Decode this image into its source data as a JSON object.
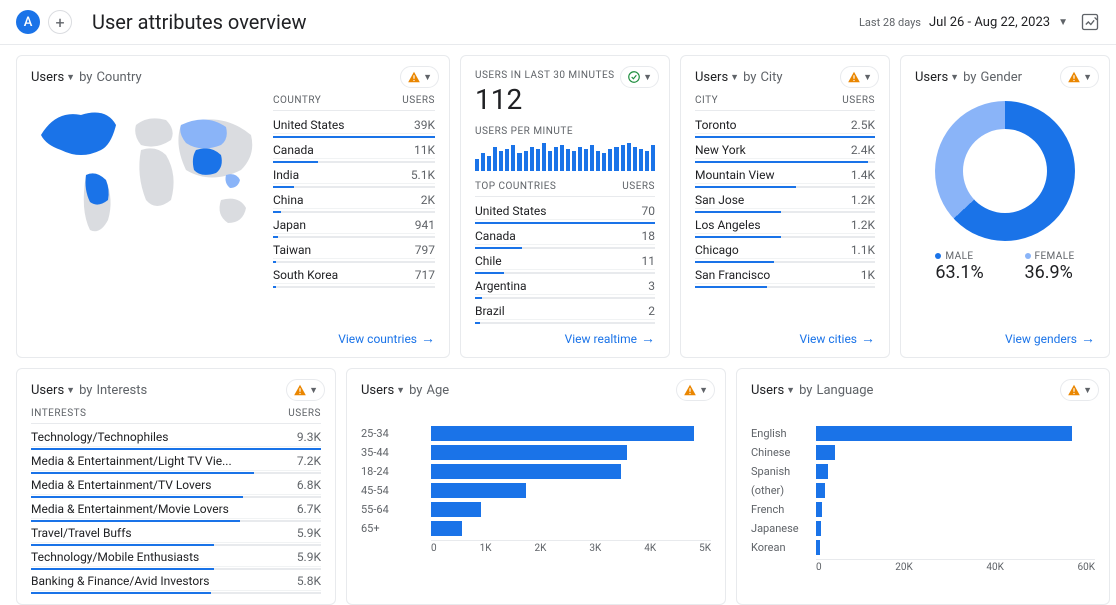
{
  "header": {
    "avatar_letter": "A",
    "title": "User attributes overview",
    "date_label": "Last 28 days",
    "date_range": "Jul 26 - Aug 22, 2023"
  },
  "colors": {
    "primary": "#1a73e8",
    "primary_light": "#8ab4f8",
    "bar": "#1a73e8",
    "donut_male": "#1a73e8",
    "donut_female": "#8ab4f8",
    "grid": "#e8eaed",
    "text_muted": "#5f6368",
    "warn": "#ea8600",
    "success": "#1e8e3e"
  },
  "country_card": {
    "metric": "Users",
    "by_label": "by",
    "dimension": "Country",
    "col_label": "COUNTRY",
    "col_value": "USERS",
    "rows": [
      {
        "label": "United States",
        "value": "39K",
        "pct": 100
      },
      {
        "label": "Canada",
        "value": "11K",
        "pct": 28
      },
      {
        "label": "India",
        "value": "5.1K",
        "pct": 13
      },
      {
        "label": "China",
        "value": "2K",
        "pct": 5
      },
      {
        "label": "Japan",
        "value": "941",
        "pct": 3
      },
      {
        "label": "Taiwan",
        "value": "797",
        "pct": 2
      },
      {
        "label": "South Korea",
        "value": "717",
        "pct": 2
      }
    ],
    "link": "View countries",
    "map": {
      "land_fill": "#dadce0",
      "highlight_fill": "#1a73e8",
      "light_highlight": "#8ab4f8"
    }
  },
  "realtime_card": {
    "label_top": "USERS IN LAST 30 MINUTES",
    "big_number": "112",
    "label_upm": "USERS PER MINUTE",
    "spark_values": [
      12,
      18,
      15,
      24,
      20,
      22,
      26,
      18,
      20,
      24,
      22,
      28,
      20,
      24,
      26,
      22,
      20,
      24,
      22,
      26,
      20,
      18,
      22,
      24,
      26,
      28,
      24,
      22,
      20,
      26
    ],
    "spark_max": 30,
    "top_countries_label": "TOP COUNTRIES",
    "users_label": "USERS",
    "rows": [
      {
        "label": "United States",
        "value": "70",
        "pct": 100
      },
      {
        "label": "Canada",
        "value": "18",
        "pct": 26
      },
      {
        "label": "Chile",
        "value": "11",
        "pct": 16
      },
      {
        "label": "Argentina",
        "value": "3",
        "pct": 4
      },
      {
        "label": "Brazil",
        "value": "2",
        "pct": 3
      }
    ],
    "link": "View realtime"
  },
  "city_card": {
    "metric": "Users",
    "by_label": "by",
    "dimension": "City",
    "col_label": "CITY",
    "col_value": "USERS",
    "rows": [
      {
        "label": "Toronto",
        "value": "2.5K",
        "pct": 100
      },
      {
        "label": "New York",
        "value": "2.4K",
        "pct": 96
      },
      {
        "label": "Mountain View",
        "value": "1.4K",
        "pct": 56
      },
      {
        "label": "San Jose",
        "value": "1.2K",
        "pct": 48
      },
      {
        "label": "Los Angeles",
        "value": "1.2K",
        "pct": 48
      },
      {
        "label": "Chicago",
        "value": "1.1K",
        "pct": 44
      },
      {
        "label": "San Francisco",
        "value": "1K",
        "pct": 40
      }
    ],
    "link": "View cities"
  },
  "gender_card": {
    "metric": "Users",
    "by_label": "by",
    "dimension": "Gender",
    "male": {
      "label": "MALE",
      "pct_text": "63.1%",
      "pct": 63.1,
      "color": "#1a73e8"
    },
    "female": {
      "label": "FEMALE",
      "pct_text": "36.9%",
      "pct": 36.9,
      "color": "#8ab4f8"
    },
    "link": "View genders"
  },
  "interests_card": {
    "metric": "Users",
    "by_label": "by",
    "dimension": "Interests",
    "col_label": "INTERESTS",
    "col_value": "USERS",
    "rows": [
      {
        "label": "Technology/Technophiles",
        "value": "9.3K",
        "pct": 100
      },
      {
        "label": "Media & Entertainment/Light TV Vie...",
        "value": "7.2K",
        "pct": 77
      },
      {
        "label": "Media & Entertainment/TV Lovers",
        "value": "6.8K",
        "pct": 73
      },
      {
        "label": "Media & Entertainment/Movie Lovers",
        "value": "6.7K",
        "pct": 72
      },
      {
        "label": "Travel/Travel Buffs",
        "value": "5.9K",
        "pct": 63
      },
      {
        "label": "Technology/Mobile Enthusiasts",
        "value": "5.9K",
        "pct": 63
      },
      {
        "label": "Banking & Finance/Avid Investors",
        "value": "5.8K",
        "pct": 62
      }
    ]
  },
  "age_card": {
    "metric": "Users",
    "by_label": "by",
    "dimension": "Age",
    "type": "hbar",
    "x_max": 5,
    "x_ticks": [
      "0",
      "1K",
      "2K",
      "3K",
      "4K",
      "5K"
    ],
    "rows": [
      {
        "label": "25-34",
        "value": 4.7
      },
      {
        "label": "35-44",
        "value": 3.5
      },
      {
        "label": "18-24",
        "value": 3.4
      },
      {
        "label": "45-54",
        "value": 1.7
      },
      {
        "label": "55-64",
        "value": 0.9
      },
      {
        "label": "65+",
        "value": 0.55
      }
    ]
  },
  "language_card": {
    "metric": "Users",
    "by_label": "by",
    "dimension": "Language",
    "type": "hbar",
    "x_max": 60,
    "x_ticks": [
      "0",
      "20K",
      "40K",
      "60K"
    ],
    "rows": [
      {
        "label": "English",
        "value": 55
      },
      {
        "label": "Chinese",
        "value": 4
      },
      {
        "label": "Spanish",
        "value": 2.5
      },
      {
        "label": "(other)",
        "value": 2
      },
      {
        "label": "French",
        "value": 1.2
      },
      {
        "label": "Japanese",
        "value": 1
      },
      {
        "label": "Korean",
        "value": 0.8
      }
    ]
  }
}
